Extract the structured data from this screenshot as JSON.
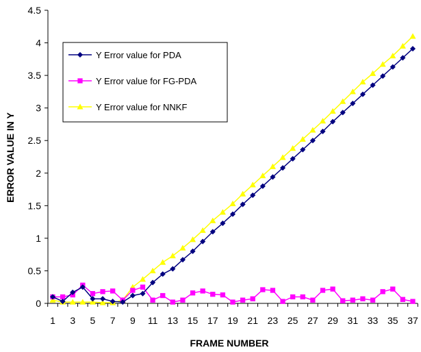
{
  "chart_data": {
    "type": "line",
    "title": "",
    "xlabel": "FRAME NUMBER",
    "ylabel": "ERROR VALUE IN Y",
    "x": [
      1,
      2,
      3,
      4,
      5,
      6,
      7,
      8,
      9,
      10,
      11,
      12,
      13,
      14,
      15,
      16,
      17,
      18,
      19,
      20,
      21,
      22,
      23,
      24,
      25,
      26,
      27,
      28,
      29,
      30,
      31,
      32,
      33,
      34,
      35,
      36,
      37
    ],
    "x_tick_labels": [
      "1",
      "3",
      "5",
      "7",
      "9",
      "11",
      "13",
      "15",
      "17",
      "19",
      "21",
      "23",
      "25",
      "27",
      "29",
      "31",
      "33",
      "35",
      "37"
    ],
    "ylim": [
      0,
      4.5
    ],
    "y_ticks": [
      "0",
      "0.5",
      "1",
      "1.5",
      "2",
      "2.5",
      "3",
      "3.5",
      "4",
      "4.5"
    ],
    "grid": false,
    "legend": {
      "position": "upper-left"
    },
    "series": [
      {
        "name": "Y Error value for PDA",
        "color": "#000080",
        "marker": "diamond",
        "values": [
          0.1,
          0.03,
          0.17,
          0.25,
          0.07,
          0.07,
          0.03,
          0.02,
          0.12,
          0.15,
          0.32,
          0.45,
          0.53,
          0.67,
          0.8,
          0.95,
          1.1,
          1.23,
          1.37,
          1.52,
          1.66,
          1.8,
          1.94,
          2.08,
          2.22,
          2.36,
          2.5,
          2.64,
          2.79,
          2.93,
          3.07,
          3.21,
          3.35,
          3.49,
          3.63,
          3.77,
          3.91
        ]
      },
      {
        "name": "Y Error value for FG-PDA",
        "color": "#ff00ff",
        "marker": "square",
        "values": [
          0.1,
          0.1,
          0.13,
          0.28,
          0.15,
          0.18,
          0.19,
          0.05,
          0.2,
          0.25,
          0.05,
          0.12,
          0.02,
          0.05,
          0.16,
          0.19,
          0.14,
          0.13,
          0.02,
          0.05,
          0.07,
          0.21,
          0.2,
          0.03,
          0.1,
          0.1,
          0.05,
          0.2,
          0.22,
          0.04,
          0.05,
          0.07,
          0.05,
          0.18,
          0.22,
          0.06,
          0.03
        ]
      },
      {
        "name": "Y Error value for NNKF",
        "color": "#ffff00",
        "marker": "triangle",
        "values": [
          0.05,
          0.02,
          0.02,
          0.02,
          0.02,
          0.01,
          0.01,
          0.05,
          0.25,
          0.37,
          0.5,
          0.63,
          0.73,
          0.85,
          0.98,
          1.12,
          1.27,
          1.4,
          1.53,
          1.68,
          1.82,
          1.96,
          2.1,
          2.24,
          2.38,
          2.52,
          2.66,
          2.8,
          2.95,
          3.1,
          3.25,
          3.4,
          3.53,
          3.67,
          3.8,
          3.95,
          4.1
        ]
      }
    ]
  }
}
